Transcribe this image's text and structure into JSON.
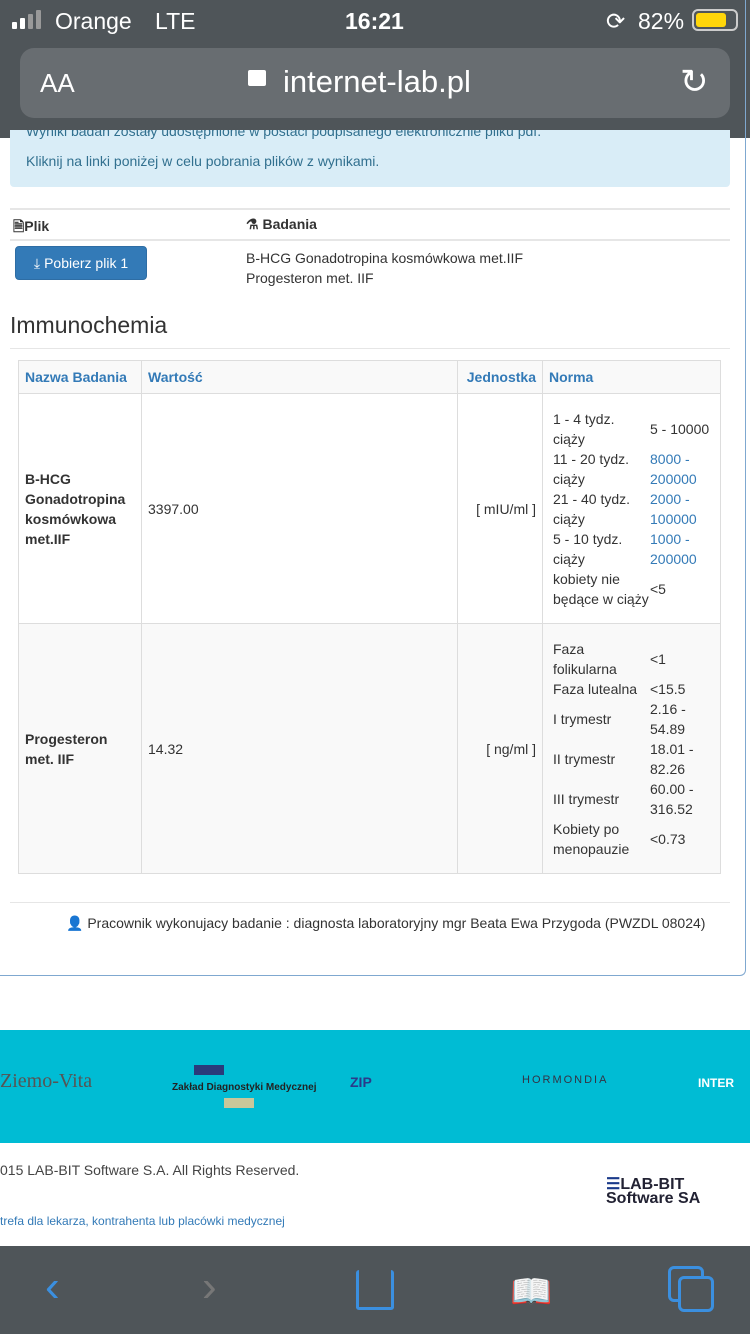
{
  "status_bar": {
    "carrier": "Orange",
    "network": "LTE",
    "time": "16:21",
    "battery": "82%"
  },
  "browser": {
    "text_size": "AA",
    "url": "internet-lab.pl"
  },
  "alert": {
    "line1": "Wyniki badań zostały udostępnione w postaci podpisanego elektronicznie pliku pdf.",
    "line2": "Kliknij na linki poniżej w celu pobrania plików z wynikami."
  },
  "files": {
    "col_file": "Plik",
    "col_tests": "Badania",
    "download_label": "Pobierz plik 1",
    "tests": [
      "B-HCG Gonadotropina kosmówkowa met.IIF",
      "Progesteron met. IIF"
    ]
  },
  "section_title": "Immunochemia",
  "results": {
    "headers": [
      "Nazwa Badania",
      "Wartość",
      "Jednostka",
      "Norma"
    ],
    "rows": [
      {
        "name": "B-HCG Gonadotropina kosmówkowa met.IIF",
        "value": "3397.00",
        "unit": "[ mIU/ml ]",
        "norms": [
          {
            "label": "1 - 4 tydz. ciąży",
            "range": "5 - 10000",
            "highlight": false
          },
          {
            "label": "11 - 20 tydz. ciąży",
            "range": "8000 - 200000",
            "highlight": true
          },
          {
            "label": "21 - 40 tydz. ciąży",
            "range": "2000 - 100000",
            "highlight": true
          },
          {
            "label": "5 - 10 tydz. ciąży",
            "range": "1000 - 200000",
            "highlight": true
          },
          {
            "label": "kobiety nie będące w ciąży",
            "range": "<5",
            "highlight": false
          }
        ]
      },
      {
        "name": "Progesteron met. IIF",
        "value": "14.32",
        "unit": "[ ng/ml ]",
        "norms": [
          {
            "label": "Faza folikularna",
            "range": "<1",
            "highlight": false
          },
          {
            "label": "Faza lutealna",
            "range": "<15.5",
            "highlight": false
          },
          {
            "label": "I trymestr",
            "range": "2.16 - 54.89",
            "highlight": false
          },
          {
            "label": "II trymestr",
            "range": "18.01 - 82.26",
            "highlight": false
          },
          {
            "label": "III trymestr",
            "range": "60.00 - 316.52",
            "highlight": false
          },
          {
            "label": "Kobiety po menopauzie",
            "range": "<0.73",
            "highlight": false
          }
        ]
      }
    ]
  },
  "performer": "Pracownik wykonujacy badanie : diagnosta laboratoryjny mgr Beata Ewa Przygoda (PWZDL 08024)",
  "partners": [
    "Ziemo-Vita",
    "Zakład Diagnostyki Medycznej",
    "ZIP",
    "HORMONDIA",
    "INTER"
  ],
  "footer": {
    "copyright": "015 LAB-BIT Software S.A. All Rights Reserved.",
    "link": "trefa dla lekarza, kontrahenta lub placówki medycznej",
    "logo": "LAB-BIT Software SA"
  },
  "colors": {
    "accent": "#337ab7",
    "footer_band": "#00bcd4",
    "chrome": "#4f5559",
    "ios_blue": "#3b8fdf"
  }
}
